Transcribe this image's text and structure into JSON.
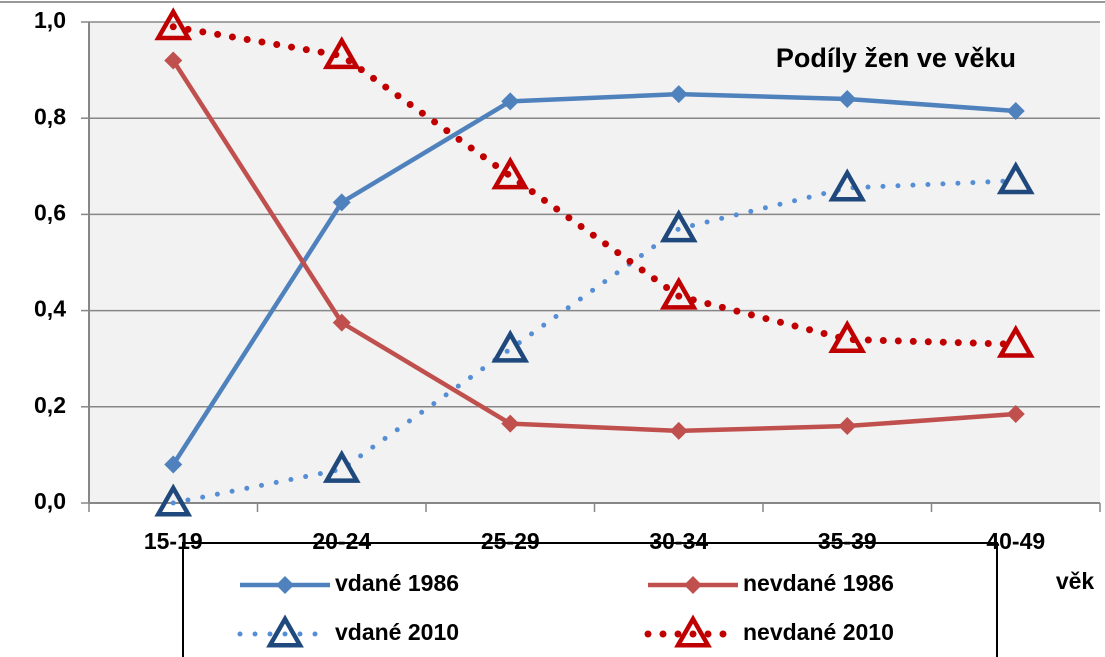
{
  "chart_data": {
    "type": "line",
    "title": "Podíly žen ve věku",
    "x_label": "věk",
    "categories": [
      "15-19",
      "20-24",
      "25-29",
      "30-34",
      "35-39",
      "40-49"
    ],
    "series": [
      {
        "name": "vdané 1986",
        "color": "#4f81bd",
        "line_style": "solid",
        "marker": "diamond",
        "values": [
          0.08,
          0.625,
          0.835,
          0.85,
          0.84,
          0.815
        ]
      },
      {
        "name": "nevdané 1986",
        "color": "#c0504d",
        "line_style": "solid",
        "marker": "diamond",
        "values": [
          0.92,
          0.375,
          0.165,
          0.15,
          0.16,
          0.185
        ]
      },
      {
        "name": "vdané 2010",
        "color": "#558ed5",
        "marker_color": "#1f497d",
        "line_style": "dotted",
        "marker": "triangle",
        "values": [
          0.0,
          0.07,
          0.32,
          0.57,
          0.655,
          0.67
        ]
      },
      {
        "name": "nevdané 2010",
        "color": "#c00000",
        "marker_color": "#c00000",
        "line_style": "dotted",
        "marker": "triangle",
        "values": [
          0.99,
          0.93,
          0.68,
          0.43,
          0.34,
          0.33
        ]
      }
    ],
    "ylim": [
      0,
      1
    ],
    "yticks": [
      {
        "value": 0,
        "label": "0,0"
      },
      {
        "value": 0.2,
        "label": "0,2"
      },
      {
        "value": 0.4,
        "label": "0,4"
      },
      {
        "value": 0.6,
        "label": "0,6"
      },
      {
        "value": 0.8,
        "label": "0,8"
      },
      {
        "value": 1,
        "label": "1,0"
      }
    ],
    "grid": true,
    "legend": "bottom"
  }
}
